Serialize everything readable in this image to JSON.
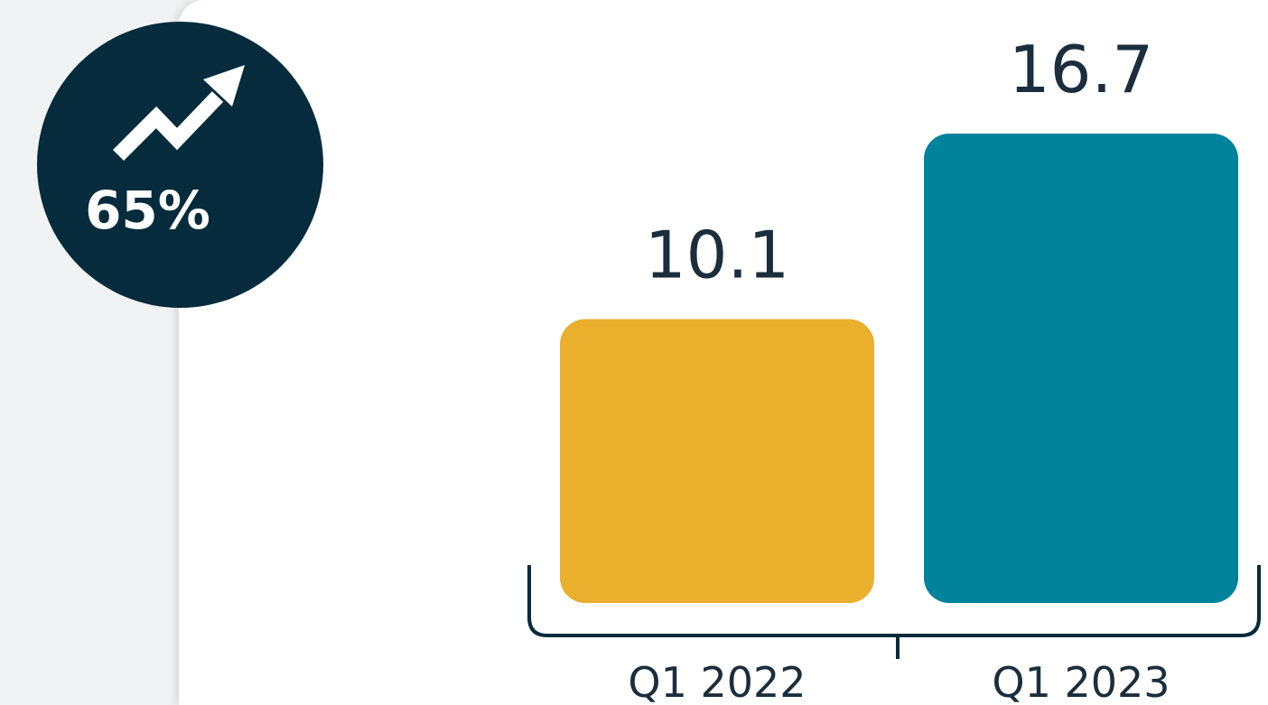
{
  "badge": {
    "percent": "65%",
    "icon": "trend-up-arrow-icon",
    "background": "#062b3c"
  },
  "chart_data": {
    "type": "bar",
    "categories": [
      "Q1 2022",
      "Q1 2023"
    ],
    "values": [
      10.1,
      16.7
    ],
    "value_labels": [
      "10.1",
      "16.7"
    ],
    "colors": [
      "#e9af2d",
      "#00839b"
    ],
    "title": "",
    "xlabel": "",
    "ylabel": "",
    "grid": false,
    "legend": "none"
  }
}
